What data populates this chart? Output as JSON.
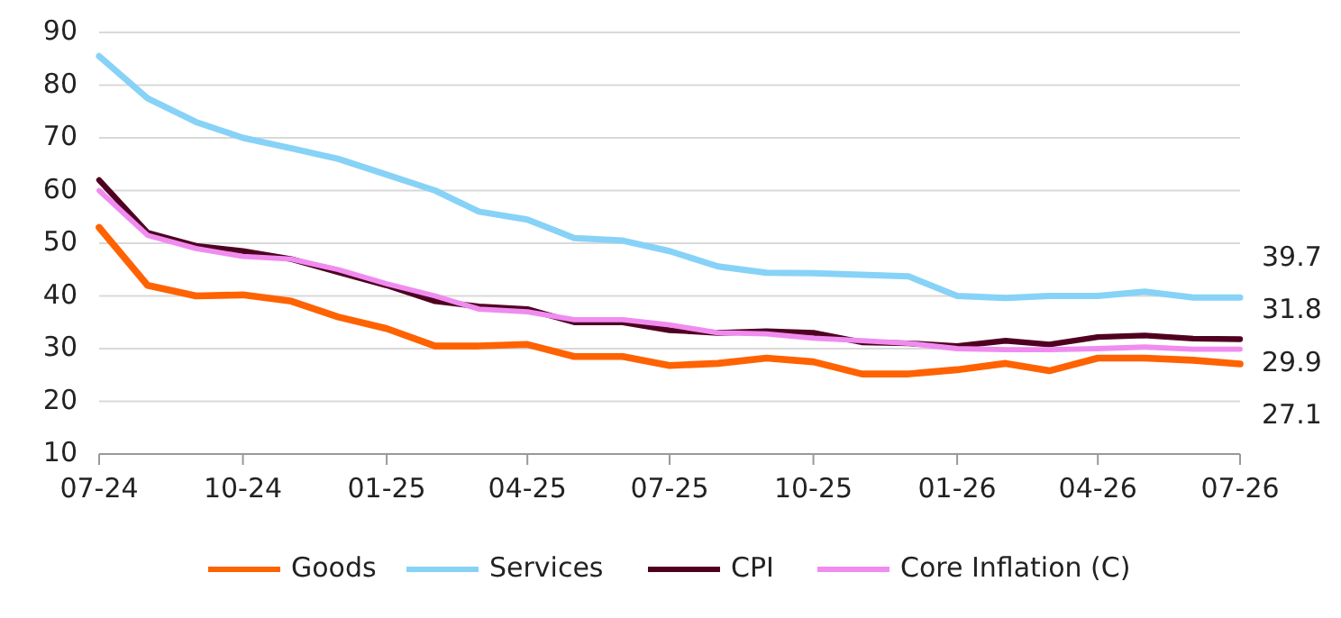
{
  "chart_data": {
    "type": "line",
    "x": [
      "2024-07",
      "2024-08",
      "2024-09",
      "2024-10",
      "2024-11",
      "2024-12",
      "2025-01",
      "2025-02",
      "2025-03",
      "2025-04",
      "2025-05",
      "2025-06",
      "2025-07",
      "2025-08",
      "2025-09",
      "2025-10",
      "2025-11",
      "2025-12",
      "2026-01",
      "2026-02",
      "2026-03",
      "2026-04",
      "2026-05",
      "2026-06",
      "2026-07"
    ],
    "series": [
      {
        "name": "Goods",
        "color": "#ff6200",
        "values": [
          53,
          42,
          40,
          40.2,
          39,
          36,
          33.8,
          30.5,
          30.5,
          30.8,
          28.5,
          28.5,
          26.8,
          27.2,
          28.2,
          27.5,
          25.2,
          25.2,
          26,
          27.2,
          25.8,
          28.2,
          28.2,
          27.8,
          27.1
        ]
      },
      {
        "name": "Services",
        "color": "#87d2f7",
        "values": [
          85.5,
          77.5,
          73,
          70,
          68,
          66,
          63,
          60,
          56,
          54.5,
          51,
          50.5,
          48.5,
          45.6,
          44.4,
          44.3,
          44,
          43.7,
          40,
          39.6,
          40,
          40,
          40.8,
          39.7,
          39.7
        ]
      },
      {
        "name": "CPI",
        "color": "#4f0021",
        "values": [
          62,
          52,
          49.5,
          48.5,
          47,
          44.5,
          42,
          39,
          38,
          37.5,
          35,
          35,
          33.5,
          33,
          33.3,
          33,
          31.2,
          31,
          30.5,
          31.5,
          30.8,
          32.2,
          32.5,
          31.9,
          31.8
        ]
      },
      {
        "name": "Core Inflation (C)",
        "color": "#f08cf0",
        "values": [
          60,
          51.5,
          49,
          47.5,
          47,
          45,
          42.3,
          40,
          37.5,
          37,
          35.5,
          35.5,
          34.5,
          33,
          32.8,
          32,
          31.5,
          31,
          30,
          29.8,
          29.8,
          30,
          30.3,
          29.9,
          29.9
        ]
      }
    ],
    "xlim": [
      "2024-07",
      "2026-07"
    ],
    "xticks": [
      {
        "value": "2024-07",
        "label": "07-24"
      },
      {
        "value": "2024-10",
        "label": "10-24"
      },
      {
        "value": "2025-01",
        "label": "01-25"
      },
      {
        "value": "2025-04",
        "label": "04-25"
      },
      {
        "value": "2025-07",
        "label": "07-25"
      },
      {
        "value": "2025-10",
        "label": "10-25"
      },
      {
        "value": "2026-01",
        "label": "01-26"
      },
      {
        "value": "2026-04",
        "label": "04-26"
      },
      {
        "value": "2026-07",
        "label": "07-26"
      }
    ],
    "ylim": [
      10,
      90
    ],
    "yticks": [
      10,
      20,
      30,
      40,
      50,
      60,
      70,
      80,
      90
    ],
    "grid": "y",
    "legend": "bottom",
    "line_style": "solid",
    "annotations": [
      "39.7",
      "31.8",
      "29.9",
      "27.1"
    ]
  }
}
